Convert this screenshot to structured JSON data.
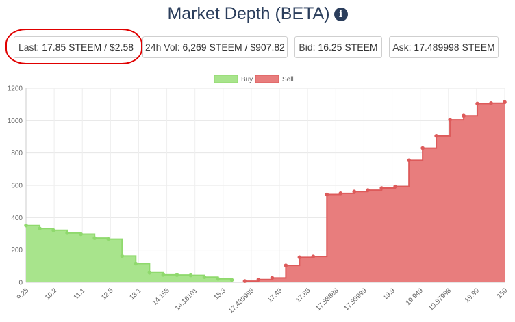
{
  "header": {
    "title": "Market Depth (BETA)",
    "info_icon": "info-icon"
  },
  "stats": {
    "last_label": "Last: ",
    "last_value": "17.85 STEEM / $2.58",
    "vol_label": "24h Vol: ",
    "vol_value": "6,269 STEEM / $907.82",
    "bid_label": "Bid: ",
    "bid_value": "16.25 STEEM",
    "ask_label": "Ask: ",
    "ask_value": "17.489998 STEEM"
  },
  "colors": {
    "buy_fill": "#a8e48c",
    "buy_line": "#8fd96d",
    "sell_fill": "#e87d7d",
    "sell_line": "#dd5a5a",
    "title": "#2b3e5c",
    "highlight": "#e00000"
  },
  "chart_data": {
    "type": "area",
    "legend": [
      "Buy",
      "Sell"
    ],
    "legend_position": "top",
    "grid": true,
    "ylim": [
      0,
      1200
    ],
    "yticks": [
      "0",
      "200",
      "400",
      "600",
      "800",
      "1000",
      "1200"
    ],
    "xticks": [
      "9.25",
      "10.2",
      "11.1",
      "12.5",
      "13.1",
      "14.155",
      "14.16101",
      "15.3",
      "17.489998",
      "17.49",
      "17.85",
      "17.98888",
      "17.99999",
      "19.9",
      "19.949",
      "19.97998",
      "19.99",
      "150"
    ],
    "series": [
      {
        "name": "Buy",
        "values": [
          352,
          333,
          322,
          305,
          298,
          274,
          268,
          163,
          116,
          60,
          47,
          46,
          44,
          33,
          22,
          15
        ]
      },
      {
        "name": "Sell",
        "values": [
          8,
          18,
          28,
          105,
          155,
          160,
          543,
          550,
          561,
          570,
          583,
          593,
          755,
          830,
          905,
          1005,
          1030,
          1105,
          1108,
          1114
        ]
      }
    ]
  }
}
